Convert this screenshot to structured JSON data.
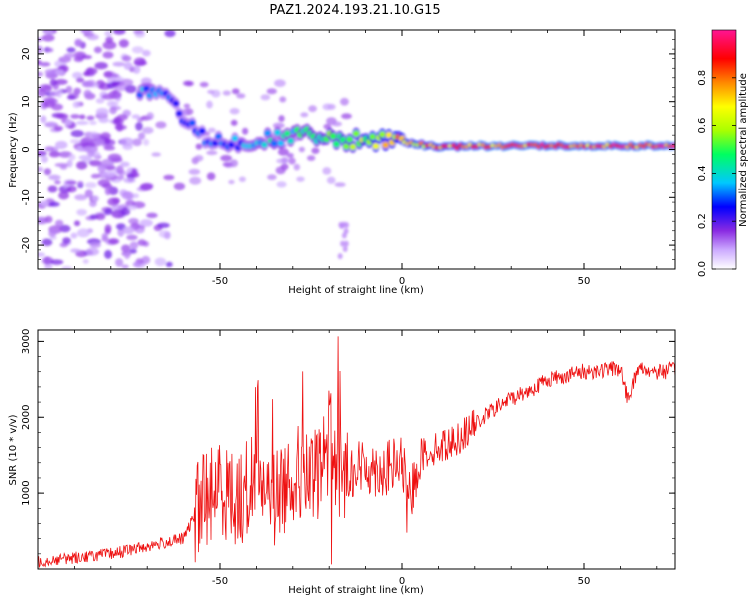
{
  "figure_title": "PAZ1.2024.193.21.10.G15",
  "chart_data": [
    {
      "type": "heatmap",
      "xlabel": "Height of straight line (km)",
      "ylabel": "Frequency (Hz)",
      "xlim": [
        -100,
        75
      ],
      "ylim": [
        -25,
        25
      ],
      "xticks": [
        -50,
        0,
        50
      ],
      "yticks": [
        -20,
        -10,
        0,
        10,
        20
      ],
      "grid": false,
      "colorbar": {
        "label": "Normalized spectral amplitude",
        "range": [
          0,
          1
        ],
        "ticks": [
          "0.0",
          "0.2",
          "0.4",
          "0.6",
          "0.8"
        ],
        "colormap": [
          "#ffffff",
          "#ccaaff",
          "#8a2be2",
          "#0000ff",
          "#00c8ff",
          "#00ff60",
          "#aaff00",
          "#ffff00",
          "#ff8800",
          "#ff0000",
          "#ff1493"
        ]
      },
      "ridge": [
        {
          "x": -70,
          "freq": 12,
          "amp": 0.35
        },
        {
          "x": -64,
          "freq": 10,
          "amp": 0.3
        },
        {
          "x": -55,
          "freq": 3,
          "amp": 0.3
        },
        {
          "x": -45,
          "freq": 1,
          "amp": 0.35
        },
        {
          "x": -30,
          "freq": 3,
          "amp": 0.45
        },
        {
          "x": -15,
          "freq": 2,
          "amp": 0.55
        },
        {
          "x": 0,
          "freq": 1.5,
          "amp": 0.75
        },
        {
          "x": 10,
          "freq": 0.5,
          "amp": 0.85
        },
        {
          "x": 25,
          "freq": 0.8,
          "amp": 0.9
        },
        {
          "x": 50,
          "freq": 0.8,
          "amp": 0.9
        },
        {
          "x": 75,
          "freq": 0.8,
          "amp": 0.9
        }
      ]
    },
    {
      "type": "line",
      "xlabel": "Height of straight line (km)",
      "ylabel": "SNR (10 * v/v)",
      "xlim": [
        -100,
        75
      ],
      "ylim": [
        0,
        3150
      ],
      "xticks": [
        -50,
        0,
        50
      ],
      "yticks": [
        1000,
        2000,
        3000
      ],
      "grid": false,
      "series_color": "#ee1111",
      "series": [
        {
          "x": [
            -100,
            -90,
            -80,
            -70,
            -65,
            -60,
            -57,
            -55,
            -50,
            -45,
            -40,
            -35,
            -30,
            -25,
            -20,
            -17,
            -15,
            -10,
            -5,
            0,
            2,
            5,
            10,
            15,
            20,
            25,
            30,
            35,
            40,
            45,
            50,
            55,
            60,
            62,
            65,
            70,
            75
          ],
          "y": [
            100,
            150,
            200,
            300,
            350,
            400,
            700,
            900,
            1100,
            900,
            1200,
            900,
            1300,
            1100,
            1600,
            1200,
            1300,
            1350,
            1300,
            1400,
            900,
            1500,
            1600,
            1700,
            1900,
            2100,
            2250,
            2350,
            2500,
            2550,
            2600,
            2620,
            2650,
            2250,
            2650,
            2600,
            2620
          ]
        }
      ]
    }
  ]
}
